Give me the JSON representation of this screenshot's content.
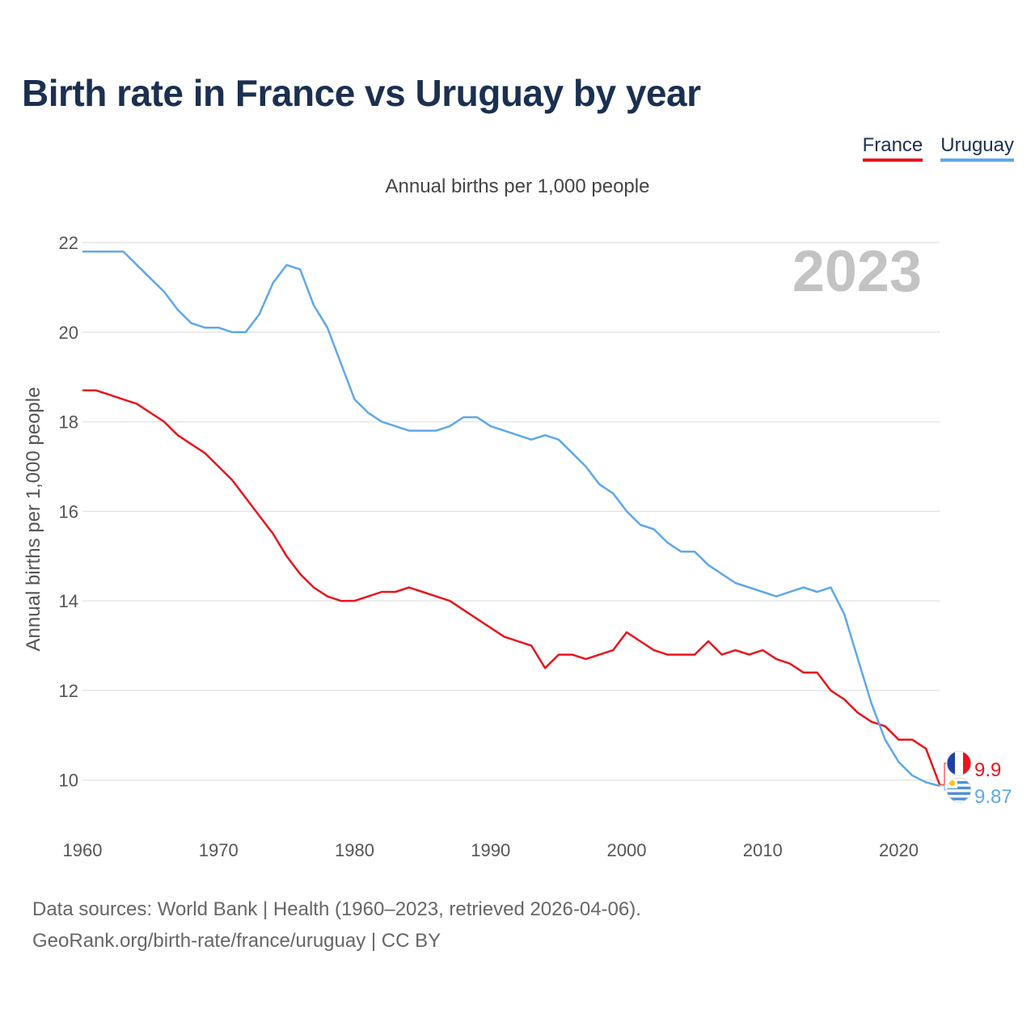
{
  "title": "Birth rate in France vs Uruguay by year",
  "legend": {
    "france": "France",
    "uruguay": "Uruguay"
  },
  "footer": {
    "line1": "Data sources: World Bank | Health (1960–2023, retrieved 2026-04-06).",
    "line2": "GeoRank.org/birth-rate/france/uruguay | CC BY"
  },
  "colors": {
    "france": "#e8141e",
    "uruguay": "#5fa8e8",
    "grid": "#e6e6e6",
    "year_watermark": "#c3c3c3"
  },
  "chart_data": {
    "type": "line",
    "title": "Birth rate in France vs Uruguay by year",
    "subtitle": "Annual births per 1,000 people",
    "ylabel": "Annual births per 1,000 people",
    "xlabel": "",
    "xlim": [
      1960,
      2023
    ],
    "ylim": [
      9.2,
      22
    ],
    "yticks": [
      10,
      12,
      14,
      16,
      18,
      20,
      22
    ],
    "xticks": [
      1960,
      1970,
      1980,
      1990,
      2000,
      2010,
      2020
    ],
    "year_label": "2023",
    "grid": true,
    "legend_position": "top-right",
    "x": [
      1960,
      1961,
      1962,
      1963,
      1964,
      1965,
      1966,
      1967,
      1968,
      1969,
      1970,
      1971,
      1972,
      1973,
      1974,
      1975,
      1976,
      1977,
      1978,
      1979,
      1980,
      1981,
      1982,
      1983,
      1984,
      1985,
      1986,
      1987,
      1988,
      1989,
      1990,
      1991,
      1992,
      1993,
      1994,
      1995,
      1996,
      1997,
      1998,
      1999,
      2000,
      2001,
      2002,
      2003,
      2004,
      2005,
      2006,
      2007,
      2008,
      2009,
      2010,
      2011,
      2012,
      2013,
      2014,
      2015,
      2016,
      2017,
      2018,
      2019,
      2020,
      2021,
      2022,
      2023
    ],
    "series": [
      {
        "name": "France",
        "color": "#e8141e",
        "end_label": "9.9",
        "values": [
          18.7,
          18.7,
          18.6,
          18.5,
          18.4,
          18.2,
          18.0,
          17.7,
          17.5,
          17.3,
          17.0,
          16.7,
          16.3,
          15.9,
          15.5,
          15.0,
          14.6,
          14.3,
          14.1,
          14.0,
          14.0,
          14.1,
          14.2,
          14.2,
          14.3,
          14.2,
          14.1,
          14.0,
          13.8,
          13.6,
          13.4,
          13.2,
          13.1,
          13.0,
          12.5,
          12.8,
          12.8,
          12.7,
          12.8,
          12.9,
          13.3,
          13.1,
          12.9,
          12.8,
          12.8,
          12.8,
          13.1,
          12.8,
          12.9,
          12.8,
          12.9,
          12.7,
          12.6,
          12.4,
          12.4,
          12.0,
          11.8,
          11.5,
          11.3,
          11.2,
          10.9,
          10.9,
          10.7,
          9.9
        ]
      },
      {
        "name": "Uruguay",
        "color": "#5fa8e8",
        "end_label": "9.87",
        "values": [
          21.8,
          21.8,
          21.8,
          21.8,
          21.5,
          21.2,
          20.9,
          20.5,
          20.2,
          20.1,
          20.1,
          20.0,
          20.0,
          20.4,
          21.1,
          21.5,
          21.4,
          20.6,
          20.1,
          19.3,
          18.5,
          18.2,
          18.0,
          17.9,
          17.8,
          17.8,
          17.8,
          17.9,
          18.1,
          18.1,
          17.9,
          17.8,
          17.7,
          17.6,
          17.7,
          17.6,
          17.3,
          17.0,
          16.6,
          16.4,
          16.0,
          15.7,
          15.6,
          15.3,
          15.1,
          15.1,
          14.8,
          14.6,
          14.4,
          14.3,
          14.2,
          14.1,
          14.2,
          14.3,
          14.2,
          14.3,
          13.7,
          12.7,
          11.7,
          10.9,
          10.4,
          10.1,
          9.95,
          9.87
        ]
      }
    ]
  }
}
